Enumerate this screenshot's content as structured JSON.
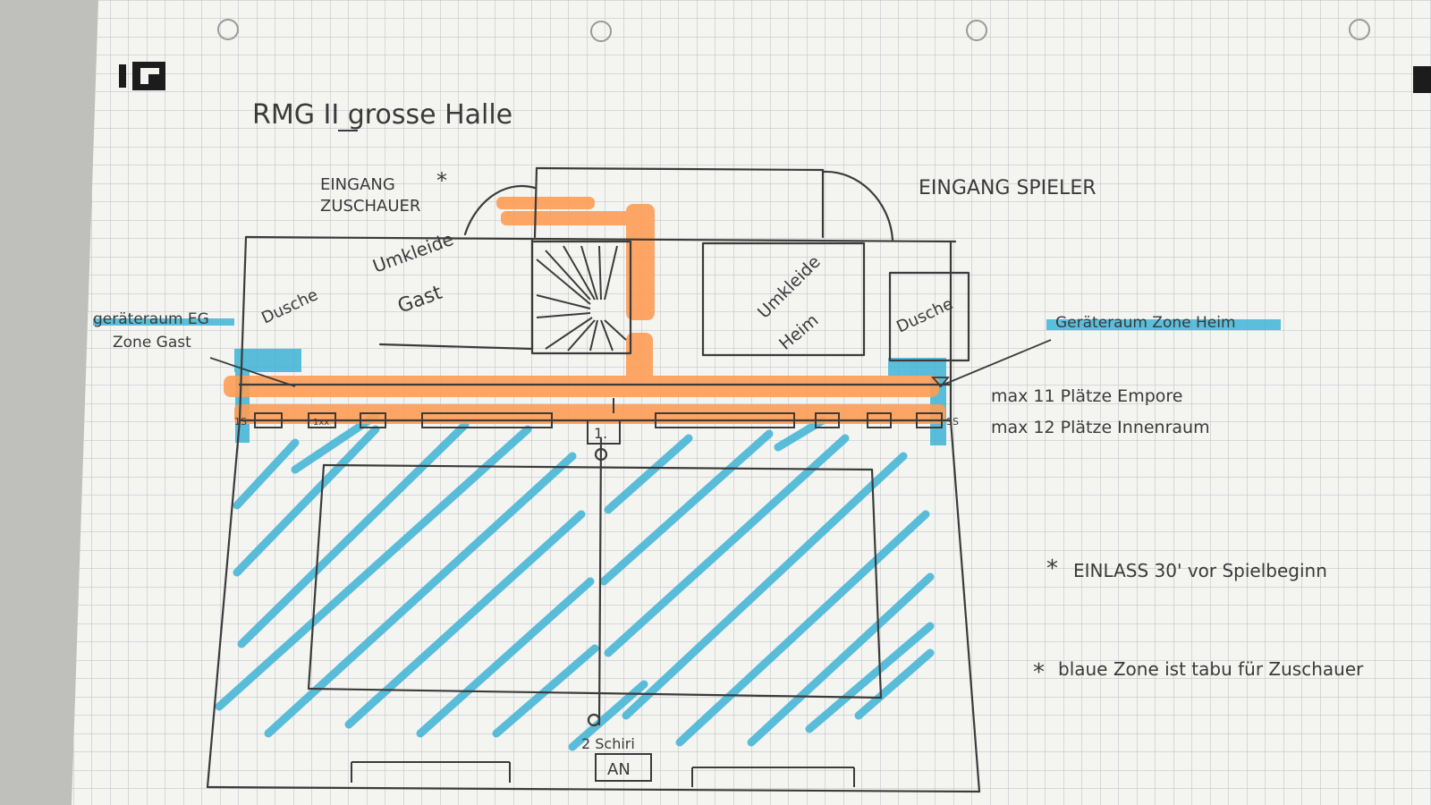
{
  "logo": {
    "text": "IC"
  },
  "title": "RMG II grosse Halle",
  "entrances": {
    "spectators": {
      "line1": "EINGANG",
      "line2": "ZUSCHAUER",
      "mark": "*"
    },
    "players": {
      "text": "EINGANG SPIELER"
    }
  },
  "rooms": {
    "shower_left": "Dusche",
    "changing_guest_line1": "Umkleide",
    "changing_guest_line2": "Gast",
    "changing_home_line1": "Umkleide",
    "changing_home_line2": "Heim",
    "shower_right": "Dusche"
  },
  "zones": {
    "equipment_guest_line1": "geräteraum EG",
    "equipment_guest_line2": "Zone Gast",
    "equipment_home": "Geräteraum Zone Heim"
  },
  "seating": {
    "gallery": "max 11 Plätze Empore",
    "inner": "max 12 Plätze Innenraum",
    "left_small_label": "1S",
    "left_box_label": "1xx",
    "right_small_label": "SS",
    "center_box_label": "1."
  },
  "table": {
    "label": "AN",
    "note": "2 Schiri"
  },
  "notes": [
    {
      "mark": "*",
      "text": "EINLASS 30' vor Spielbeginn"
    },
    {
      "mark": "*",
      "text": "blaue Zone ist tabu für Zuschauer"
    }
  ],
  "colors": {
    "paper": "#f4f4f1",
    "grid": "#b9bcc2",
    "ink": "#3b3b3b",
    "orange_highlight": "#ff9d55",
    "blue_highlight": "#3fb4d6"
  }
}
